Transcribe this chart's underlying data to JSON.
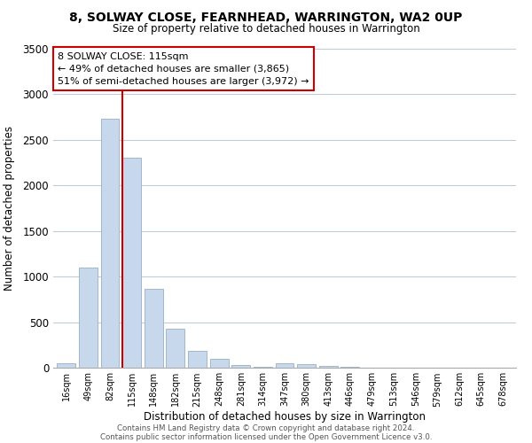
{
  "title": "8, SOLWAY CLOSE, FEARNHEAD, WARRINGTON, WA2 0UP",
  "subtitle": "Size of property relative to detached houses in Warrington",
  "xlabel": "Distribution of detached houses by size in Warrington",
  "ylabel": "Number of detached properties",
  "bar_color": "#c8d8ec",
  "bar_edge_color": "#a0b8cc",
  "vline_color": "#cc0000",
  "categories": [
    "16sqm",
    "49sqm",
    "82sqm",
    "115sqm",
    "148sqm",
    "182sqm",
    "215sqm",
    "248sqm",
    "281sqm",
    "314sqm",
    "347sqm",
    "380sqm",
    "413sqm",
    "446sqm",
    "479sqm",
    "513sqm",
    "546sqm",
    "579sqm",
    "612sqm",
    "645sqm",
    "678sqm"
  ],
  "values": [
    50,
    1100,
    2730,
    2300,
    870,
    430,
    185,
    95,
    30,
    5,
    50,
    40,
    20,
    5,
    0,
    0,
    0,
    0,
    0,
    0,
    0
  ],
  "ylim": [
    0,
    3500
  ],
  "yticks": [
    0,
    500,
    1000,
    1500,
    2000,
    2500,
    3000,
    3500
  ],
  "vline_index": 3,
  "annotation_title": "8 SOLWAY CLOSE: 115sqm",
  "annotation_line1": "← 49% of detached houses are smaller (3,865)",
  "annotation_line2": "51% of semi-detached houses are larger (3,972) →",
  "annotation_box_color": "#ffffff",
  "annotation_box_edge": "#cc0000",
  "footer1": "Contains HM Land Registry data © Crown copyright and database right 2024.",
  "footer2": "Contains public sector information licensed under the Open Government Licence v3.0.",
  "background_color": "#ffffff",
  "grid_color": "#c0ccd8"
}
